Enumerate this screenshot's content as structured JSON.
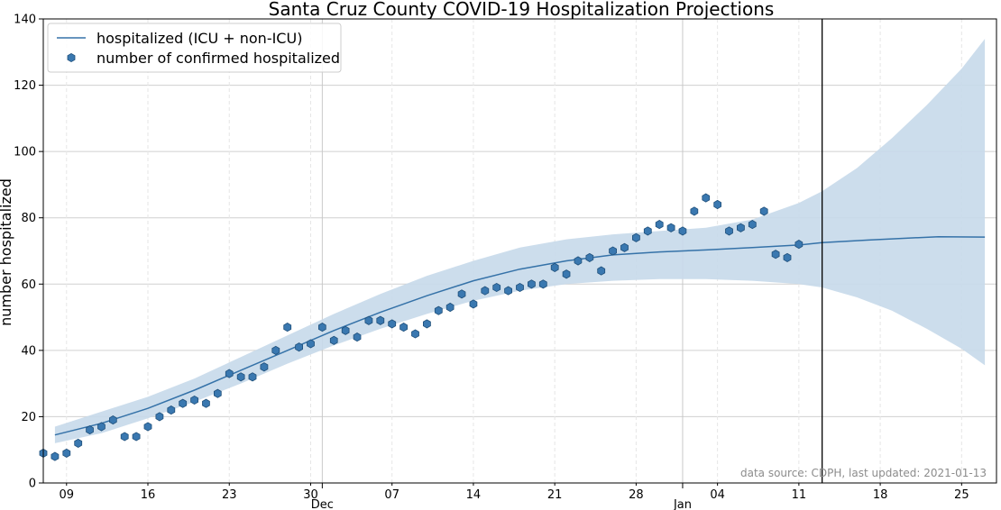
{
  "chart_data": {
    "type": "line",
    "title": "Santa Cruz County COVID-19 Hospitalization Projections",
    "xlabel": "",
    "ylabel": "number hospitalized",
    "ylim": [
      0,
      140
    ],
    "xlim": [
      "2020-11-07",
      "2021-01-28"
    ],
    "y_ticks": [
      0,
      20,
      40,
      60,
      80,
      100,
      120,
      140
    ],
    "x_minor_ticks": [
      {
        "date": "2020-11-09",
        "label": "09"
      },
      {
        "date": "2020-11-16",
        "label": "16"
      },
      {
        "date": "2020-11-23",
        "label": "23"
      },
      {
        "date": "2020-11-30",
        "label": "30"
      },
      {
        "date": "2020-12-07",
        "label": "07"
      },
      {
        "date": "2020-12-14",
        "label": "14"
      },
      {
        "date": "2020-12-21",
        "label": "21"
      },
      {
        "date": "2020-12-28",
        "label": "28"
      },
      {
        "date": "2021-01-04",
        "label": "04"
      },
      {
        "date": "2021-01-11",
        "label": "11"
      },
      {
        "date": "2021-01-18",
        "label": "18"
      },
      {
        "date": "2021-01-25",
        "label": "25"
      }
    ],
    "x_major_ticks": [
      {
        "date": "2020-12-01",
        "label": "Dec"
      },
      {
        "date": "2021-01-01",
        "label": "Jan"
      }
    ],
    "grid": true,
    "legend_position": "top-left",
    "vertical_line": "2021-01-13",
    "annotation": "data source: CDPH, last updated: 2021-01-13",
    "colors": {
      "line": "#3572a8",
      "band": "#c6d9ea",
      "marker": "#3a78b0",
      "marker_edge": "#1f4f7a"
    },
    "series": [
      {
        "name": "hospitalized (ICU + non-ICU)",
        "kind": "line",
        "points": [
          [
            "2020-11-08",
            14.5
          ],
          [
            "2020-11-12",
            18
          ],
          [
            "2020-11-16",
            22.5
          ],
          [
            "2020-11-20",
            28
          ],
          [
            "2020-11-24",
            34
          ],
          [
            "2020-11-28",
            40
          ],
          [
            "2020-12-02",
            46
          ],
          [
            "2020-12-06",
            51.5
          ],
          [
            "2020-12-10",
            56.5
          ],
          [
            "2020-12-14",
            61
          ],
          [
            "2020-12-18",
            64.5
          ],
          [
            "2020-12-22",
            67
          ],
          [
            "2020-12-26",
            68.8
          ],
          [
            "2020-12-30",
            69.7
          ],
          [
            "2021-01-03",
            70.3
          ],
          [
            "2021-01-07",
            71
          ],
          [
            "2021-01-11",
            71.8
          ],
          [
            "2021-01-13",
            72.5
          ],
          [
            "2021-01-17",
            73.3
          ],
          [
            "2021-01-20",
            73.8
          ],
          [
            "2021-01-23",
            74.3
          ],
          [
            "2021-01-27",
            74.2
          ]
        ]
      },
      {
        "name": "confidence band",
        "kind": "band",
        "points": [
          [
            "2020-11-08",
            12,
            17
          ],
          [
            "2020-11-12",
            15,
            21.5
          ],
          [
            "2020-11-16",
            19.5,
            26
          ],
          [
            "2020-11-20",
            24.5,
            31.5
          ],
          [
            "2020-11-24",
            30,
            38
          ],
          [
            "2020-11-28",
            36,
            44.5
          ],
          [
            "2020-12-02",
            41.5,
            51
          ],
          [
            "2020-12-06",
            46.5,
            57
          ],
          [
            "2020-12-10",
            51,
            62.5
          ],
          [
            "2020-12-14",
            55,
            67
          ],
          [
            "2020-12-18",
            58,
            71
          ],
          [
            "2020-12-22",
            60,
            73.5
          ],
          [
            "2020-12-26",
            61,
            75
          ],
          [
            "2020-12-30",
            61.5,
            76
          ],
          [
            "2021-01-03",
            61.5,
            77
          ],
          [
            "2021-01-07",
            61,
            79.5
          ],
          [
            "2021-01-11",
            60,
            84.5
          ],
          [
            "2021-01-13",
            59,
            88
          ],
          [
            "2021-01-16",
            56,
            95
          ],
          [
            "2021-01-19",
            52,
            104
          ],
          [
            "2021-01-22",
            46.5,
            114
          ],
          [
            "2021-01-25",
            40.5,
            125
          ],
          [
            "2021-01-27",
            35.5,
            134
          ]
        ]
      },
      {
        "name": "number of confirmed hospitalized",
        "kind": "scatter",
        "points": [
          [
            "2020-11-07",
            9
          ],
          [
            "2020-11-08",
            8
          ],
          [
            "2020-11-09",
            9
          ],
          [
            "2020-11-10",
            12
          ],
          [
            "2020-11-11",
            16
          ],
          [
            "2020-11-12",
            17
          ],
          [
            "2020-11-13",
            19
          ],
          [
            "2020-11-14",
            14
          ],
          [
            "2020-11-15",
            14
          ],
          [
            "2020-11-16",
            17
          ],
          [
            "2020-11-17",
            20
          ],
          [
            "2020-11-18",
            22
          ],
          [
            "2020-11-19",
            24
          ],
          [
            "2020-11-20",
            25
          ],
          [
            "2020-11-21",
            24
          ],
          [
            "2020-11-22",
            27
          ],
          [
            "2020-11-23",
            33
          ],
          [
            "2020-11-24",
            32
          ],
          [
            "2020-11-25",
            32
          ],
          [
            "2020-11-26",
            35
          ],
          [
            "2020-11-27",
            40
          ],
          [
            "2020-11-28",
            47
          ],
          [
            "2020-11-29",
            41
          ],
          [
            "2020-11-30",
            42
          ],
          [
            "2020-12-01",
            47
          ],
          [
            "2020-12-02",
            43
          ],
          [
            "2020-12-03",
            46
          ],
          [
            "2020-12-04",
            44
          ],
          [
            "2020-12-05",
            49
          ],
          [
            "2020-12-06",
            49
          ],
          [
            "2020-12-07",
            48
          ],
          [
            "2020-12-08",
            47
          ],
          [
            "2020-12-09",
            45
          ],
          [
            "2020-12-10",
            48
          ],
          [
            "2020-12-11",
            52
          ],
          [
            "2020-12-12",
            53
          ],
          [
            "2020-12-13",
            57
          ],
          [
            "2020-12-14",
            54
          ],
          [
            "2020-12-15",
            58
          ],
          [
            "2020-12-16",
            59
          ],
          [
            "2020-12-17",
            58
          ],
          [
            "2020-12-18",
            59
          ],
          [
            "2020-12-19",
            60
          ],
          [
            "2020-12-20",
            60
          ],
          [
            "2020-12-21",
            65
          ],
          [
            "2020-12-22",
            63
          ],
          [
            "2020-12-23",
            67
          ],
          [
            "2020-12-24",
            68
          ],
          [
            "2020-12-25",
            64
          ],
          [
            "2020-12-26",
            70
          ],
          [
            "2020-12-27",
            71
          ],
          [
            "2020-12-28",
            74
          ],
          [
            "2020-12-29",
            76
          ],
          [
            "2020-12-30",
            78
          ],
          [
            "2020-12-31",
            77
          ],
          [
            "2021-01-01",
            76
          ],
          [
            "2021-01-02",
            82
          ],
          [
            "2021-01-03",
            86
          ],
          [
            "2021-01-04",
            84
          ],
          [
            "2021-01-05",
            76
          ],
          [
            "2021-01-06",
            77
          ],
          [
            "2021-01-07",
            78
          ],
          [
            "2021-01-08",
            82
          ],
          [
            "2021-01-09",
            69
          ],
          [
            "2021-01-10",
            68
          ],
          [
            "2021-01-11",
            72
          ]
        ]
      }
    ]
  }
}
